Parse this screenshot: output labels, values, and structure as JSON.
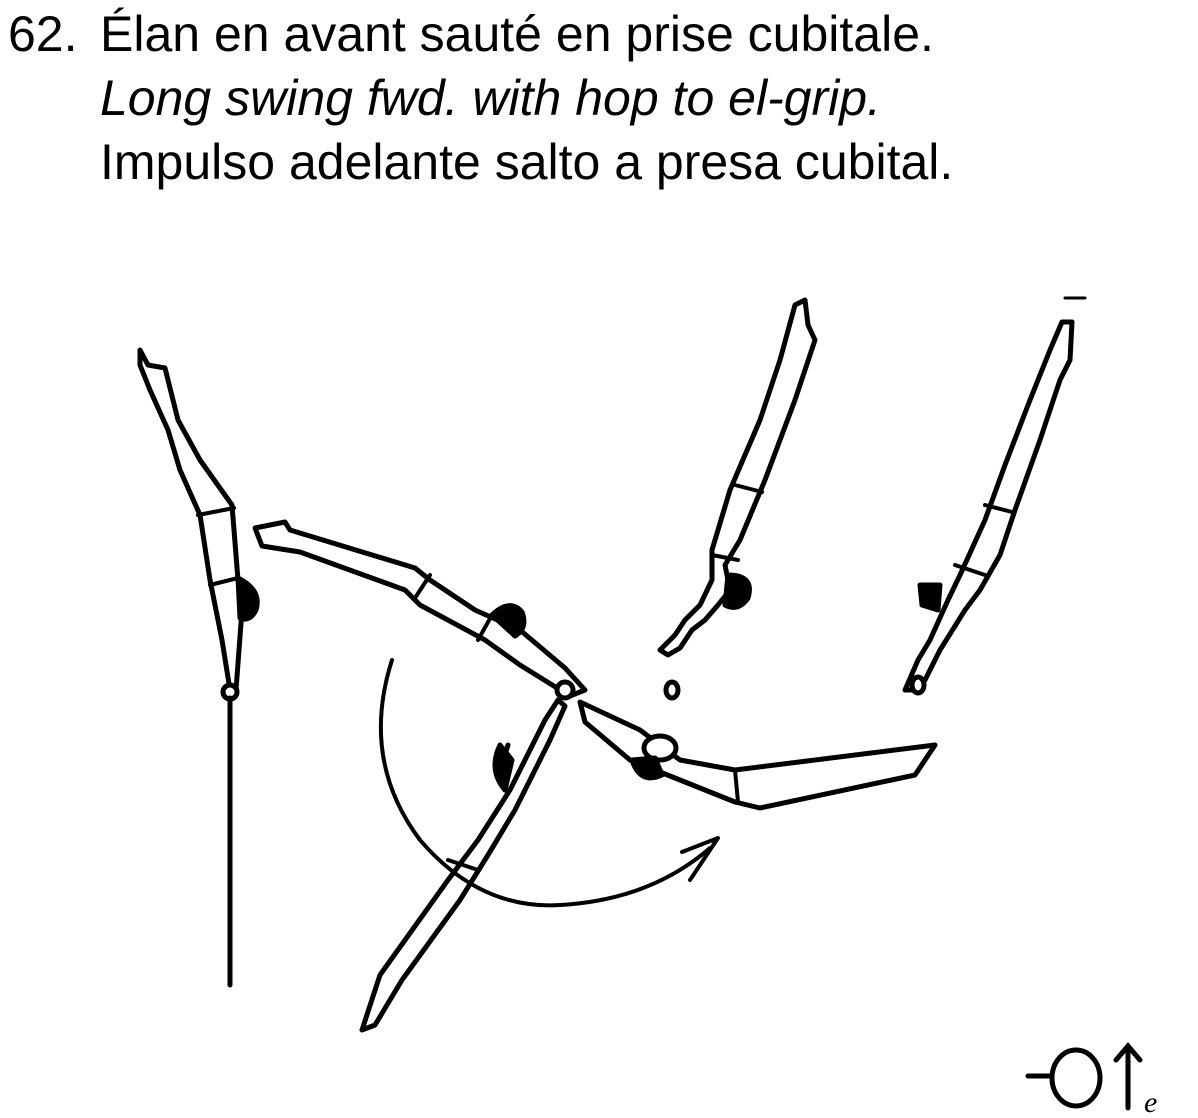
{
  "element": {
    "number": "62.",
    "title_fr": "Élan en avant sauté en prise cubitale.",
    "title_en": "Long swing fwd. with hop to el-grip.",
    "title_es": "Impulso adelante salto a presa cubital."
  },
  "figure": {
    "description_icons": [
      "gymnast-hang-figure",
      "horizontal-bar-icon",
      "rotation-arrow-icon"
    ],
    "ink_color": "#000000"
  },
  "notation": {
    "subscript": "e"
  }
}
